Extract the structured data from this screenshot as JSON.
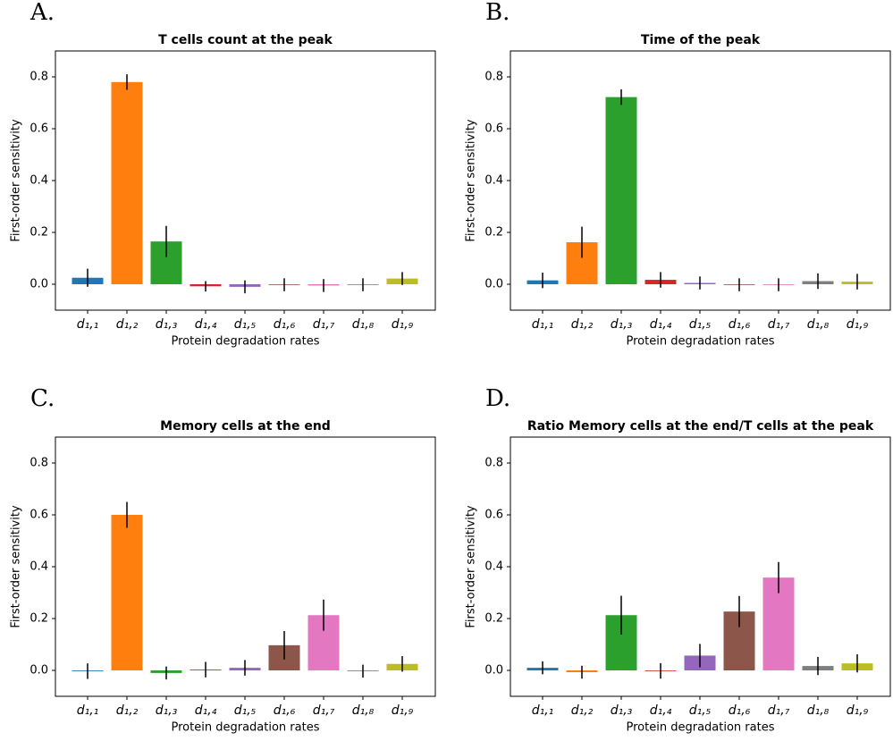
{
  "chart_data": [
    {
      "type": "bar",
      "panel_label": "A.",
      "title": "T cells count at the peak",
      "xlabel": "Protein degradation rates",
      "ylabel": "First-order sensitivity",
      "categories": [
        "d₁,₁",
        "d₁,₂",
        "d₁,₃",
        "d₁,₄",
        "d₁,₅",
        "d₁,₆",
        "d₁,₇",
        "d₁,₈",
        "d₁,₉"
      ],
      "values": [
        0.025,
        0.78,
        0.165,
        -0.008,
        -0.01,
        -0.002,
        -0.005,
        -0.002,
        0.022
      ],
      "errors": [
        0.035,
        0.03,
        0.06,
        0.02,
        0.025,
        0.025,
        0.025,
        0.025,
        0.025
      ],
      "colors": [
        "#1f77b4",
        "#ff7f0e",
        "#2ca02c",
        "#d62728",
        "#9467bd",
        "#8c564b",
        "#e377c2",
        "#7f7f7f",
        "#bcbd22"
      ],
      "ylim": [
        -0.1,
        0.9
      ],
      "yticks": [
        {
          "value": 0,
          "label": "0.0"
        },
        0.2,
        0.4,
        0.6,
        0.8
      ]
    },
    {
      "type": "bar",
      "panel_label": "B.",
      "title": "Time of the peak",
      "xlabel": "Protein degradation rates",
      "ylabel": "First-order sensitivity",
      "categories": [
        "d₁,₁",
        "d₁,₂",
        "d₁,₃",
        "d₁,₄",
        "d₁,₅",
        "d₁,₆",
        "d₁,₇",
        "d₁,₈",
        "d₁,₉"
      ],
      "values": [
        0.015,
        0.162,
        0.722,
        0.017,
        0.005,
        -0.002,
        -0.002,
        0.012,
        0.01
      ],
      "errors": [
        0.03,
        0.06,
        0.03,
        0.03,
        0.025,
        0.025,
        0.025,
        0.03,
        0.03
      ],
      "colors": [
        "#1f77b4",
        "#ff7f0e",
        "#2ca02c",
        "#d62728",
        "#9467bd",
        "#8c564b",
        "#e377c2",
        "#7f7f7f",
        "#bcbd22"
      ],
      "ylim": [
        -0.1,
        0.9
      ],
      "yticks": [
        {
          "value": 0,
          "label": "0.0"
        },
        0.2,
        0.4,
        0.6,
        0.8
      ]
    },
    {
      "type": "bar",
      "panel_label": "C.",
      "title": "Memory cells at the end",
      "xlabel": "Protein degradation rates",
      "ylabel": "First-order sensitivity",
      "categories": [
        "d₁,₁",
        "d₁,₂",
        "d₁,₃",
        "d₁,₄",
        "d₁,₅",
        "d₁,₆",
        "d₁,₇",
        "d₁,₈",
        "d₁,₉"
      ],
      "values": [
        -0.003,
        0.6,
        -0.01,
        0.003,
        0.01,
        0.097,
        0.213,
        -0.003,
        0.025
      ],
      "errors": [
        0.03,
        0.05,
        0.025,
        0.03,
        0.03,
        0.055,
        0.06,
        0.025,
        0.03
      ],
      "colors": [
        "#1f77b4",
        "#ff7f0e",
        "#2ca02c",
        "#d62728",
        "#9467bd",
        "#8c564b",
        "#e377c2",
        "#7f7f7f",
        "#bcbd22"
      ],
      "ylim": [
        -0.1,
        0.9
      ],
      "yticks": [
        {
          "value": 0,
          "label": "0.0"
        },
        0.2,
        0.4,
        0.6,
        0.8
      ]
    },
    {
      "type": "bar",
      "panel_label": "D.",
      "title": "Ratio Memory cells at the end/T cells at the peak",
      "xlabel": "Protein degradation rates",
      "ylabel": "First-order sensitivity",
      "categories": [
        "d₁,₁",
        "d₁,₂",
        "d₁,₃",
        "d₁,₄",
        "d₁,₅",
        "d₁,₆",
        "d₁,₇",
        "d₁,₈",
        "d₁,₉"
      ],
      "values": [
        0.01,
        -0.007,
        0.213,
        -0.002,
        0.057,
        0.227,
        0.358,
        0.017,
        0.027
      ],
      "errors": [
        0.025,
        0.025,
        0.075,
        0.03,
        0.045,
        0.06,
        0.06,
        0.035,
        0.035
      ],
      "colors": [
        "#1f77b4",
        "#ff7f0e",
        "#2ca02c",
        "#d62728",
        "#9467bd",
        "#8c564b",
        "#e377c2",
        "#7f7f7f",
        "#bcbd22"
      ],
      "ylim": [
        -0.1,
        0.9
      ],
      "yticks": [
        {
          "value": 0,
          "label": "0.0"
        },
        0.2,
        0.4,
        0.6,
        0.8
      ]
    }
  ]
}
